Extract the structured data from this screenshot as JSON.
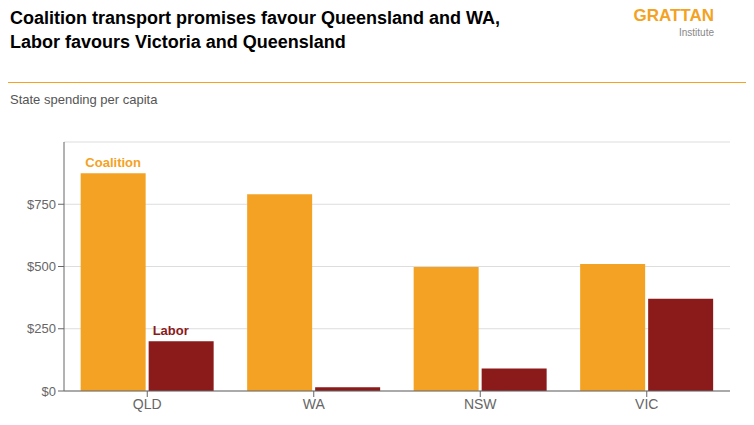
{
  "chart_data": {
    "type": "bar",
    "title": "Coalition transport promises favour Queensland and WA,\nLabor favours Victoria and Queensland",
    "subtitle": "State spending per capita",
    "categories": [
      "QLD",
      "WA",
      "NSW",
      "VIC"
    ],
    "series": [
      {
        "name": "Coalition",
        "color": "#F4A223",
        "values": [
          875,
          790,
          498,
          510
        ]
      },
      {
        "name": "Labor",
        "color": "#8B1A1A",
        "values": [
          200,
          15,
          90,
          370
        ]
      }
    ],
    "ylim": [
      0,
      1000
    ],
    "yticks": [
      {
        "value": 0,
        "label": "$0"
      },
      {
        "value": 250,
        "label": "$250"
      },
      {
        "value": 500,
        "label": "$500"
      },
      {
        "value": 750,
        "label": "$750"
      }
    ],
    "grid": true,
    "annotations": [
      {
        "text": "GRATTAN",
        "color": "#F4A223"
      },
      {
        "text": "Institute"
      }
    ]
  }
}
